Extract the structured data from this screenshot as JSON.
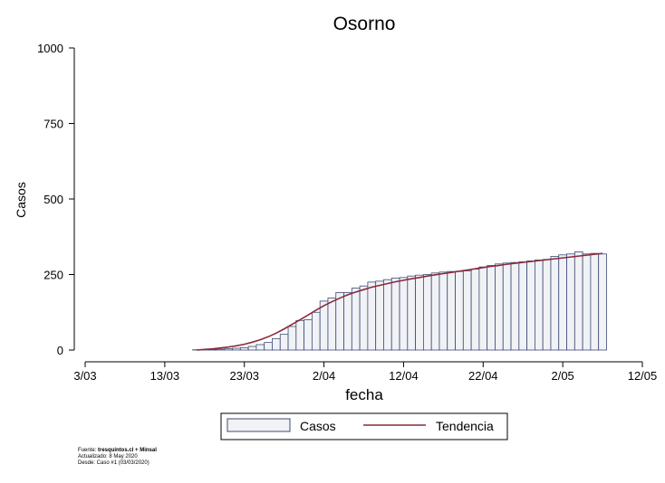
{
  "chart_data": {
    "type": "bar",
    "title": "Osorno",
    "xlabel": "fecha",
    "ylabel": "Casos",
    "ylim": [
      0,
      1000
    ],
    "yticks": [
      "0",
      "250",
      "500",
      "750",
      "1000"
    ],
    "yticks_values": [
      0,
      250,
      500,
      750,
      1000
    ],
    "xticks": [
      "3/03",
      "13/03",
      "23/03",
      "2/04",
      "12/04",
      "22/04",
      "2/05",
      "12/05"
    ],
    "xlim": [
      "2020-03-03",
      "2020-05-12"
    ],
    "grid": false,
    "legend_position": "bottom",
    "series": [
      {
        "name": "Casos",
        "kind": "bar",
        "color": "#f1f2f5",
        "edge_color": "#3c4a78",
        "x": [
          "2020-03-17",
          "2020-03-18",
          "2020-03-19",
          "2020-03-20",
          "2020-03-21",
          "2020-03-22",
          "2020-03-23",
          "2020-03-24",
          "2020-03-25",
          "2020-03-26",
          "2020-03-27",
          "2020-03-28",
          "2020-03-29",
          "2020-03-30",
          "2020-03-31",
          "2020-04-01",
          "2020-04-02",
          "2020-04-03",
          "2020-04-04",
          "2020-04-05",
          "2020-04-06",
          "2020-04-07",
          "2020-04-08",
          "2020-04-09",
          "2020-04-10",
          "2020-04-11",
          "2020-04-12",
          "2020-04-13",
          "2020-04-14",
          "2020-04-15",
          "2020-04-16",
          "2020-04-17",
          "2020-04-18",
          "2020-04-19",
          "2020-04-20",
          "2020-04-21",
          "2020-04-22",
          "2020-04-23",
          "2020-04-24",
          "2020-04-25",
          "2020-04-26",
          "2020-04-27",
          "2020-04-28",
          "2020-04-29",
          "2020-04-30",
          "2020-05-01",
          "2020-05-02",
          "2020-05-03",
          "2020-05-04",
          "2020-05-05",
          "2020-05-06",
          "2020-05-07"
        ],
        "values": [
          1,
          1,
          2,
          3,
          4,
          6,
          8,
          12,
          18,
          25,
          38,
          52,
          78,
          98,
          100,
          125,
          162,
          172,
          190,
          190,
          205,
          212,
          225,
          228,
          233,
          238,
          240,
          245,
          248,
          250,
          255,
          258,
          260,
          260,
          262,
          268,
          275,
          280,
          285,
          288,
          290,
          292,
          295,
          298,
          300,
          310,
          315,
          318,
          325,
          318,
          320,
          318
        ]
      },
      {
        "name": "Tendencia",
        "kind": "line",
        "color": "#8b2a3a",
        "x": [
          "2020-03-17",
          "2020-03-18",
          "2020-03-19",
          "2020-03-20",
          "2020-03-21",
          "2020-03-22",
          "2020-03-23",
          "2020-03-24",
          "2020-03-25",
          "2020-03-26",
          "2020-03-27",
          "2020-03-28",
          "2020-03-29",
          "2020-03-30",
          "2020-03-31",
          "2020-04-01",
          "2020-04-02",
          "2020-04-03",
          "2020-04-04",
          "2020-04-05",
          "2020-04-06",
          "2020-04-07",
          "2020-04-08",
          "2020-04-09",
          "2020-04-10",
          "2020-04-11",
          "2020-04-12",
          "2020-04-13",
          "2020-04-14",
          "2020-04-15",
          "2020-04-16",
          "2020-04-17",
          "2020-04-18",
          "2020-04-19",
          "2020-04-20",
          "2020-04-21",
          "2020-04-22",
          "2020-04-23",
          "2020-04-24",
          "2020-04-25",
          "2020-04-26",
          "2020-04-27",
          "2020-04-28",
          "2020-04-29",
          "2020-04-30",
          "2020-05-01",
          "2020-05-02",
          "2020-05-03",
          "2020-05-04",
          "2020-05-05",
          "2020-05-06",
          "2020-05-07"
        ],
        "values": [
          0,
          2,
          4,
          7,
          10,
          14,
          19,
          26,
          34,
          44,
          56,
          70,
          85,
          100,
          116,
          132,
          147,
          160,
          172,
          183,
          192,
          200,
          208,
          214,
          220,
          226,
          231,
          236,
          240,
          245,
          249,
          253,
          257,
          261,
          265,
          269,
          273,
          277,
          280,
          284,
          287,
          290,
          293,
          296,
          299,
          302,
          305,
          308,
          311,
          314,
          317,
          320
        ]
      }
    ]
  },
  "footer": {
    "source_label": "Fuente: ",
    "source_value": "tresquintos.cl + Minsal",
    "updated": "Actualizado: 8 May 2020",
    "since": "Desde: Caso #1  (03/03/2020)"
  }
}
